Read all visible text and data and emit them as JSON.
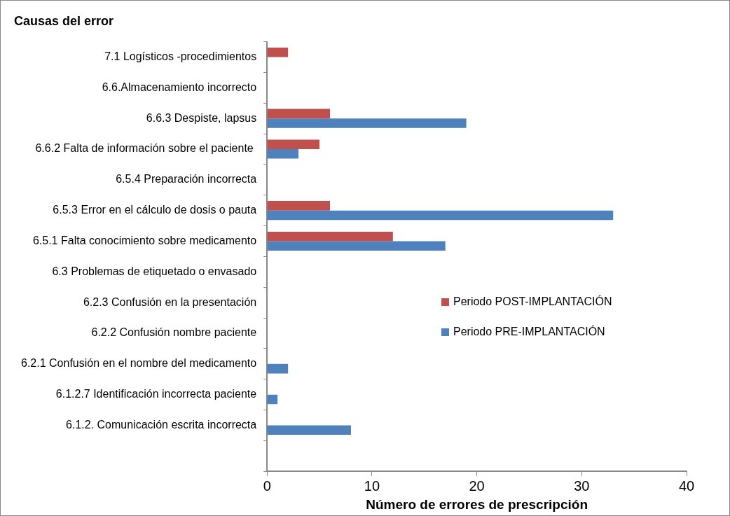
{
  "chart_data": {
    "type": "bar",
    "orientation": "horizontal",
    "title": "Causas del error",
    "xlabel": "Número de errores de prescripción",
    "categories": [
      "7.1 Logísticos -procedimientos",
      "6.6.Almacenamiento incorrecto",
      "6.6.3 Despiste, lapsus",
      "6.6.2 Falta de información sobre el paciente ",
      "6.5.4 Preparación incorrecta",
      "6.5.3 Error en el cálculo de dosis o pauta",
      "6.5.1 Falta conocimiento sobre medicamento",
      "6.3 Problemas de etiquetado o envasado",
      "6.2.3 Confusión en la presentación",
      "6.2.2 Confusión nombre paciente",
      "6.2.1 Confusión en el nombre del medicamento",
      "6.1.2.7 Identificación incorrecta paciente",
      "6.1.2. Comunicación escrita incorrecta",
      null
    ],
    "series": [
      {
        "name": "Periodo POST-IMPLANTACIÓN",
        "color": "#c0504d",
        "values": [
          2,
          0,
          6,
          5,
          0,
          6,
          12,
          0,
          0,
          0,
          0,
          0,
          0,
          0
        ]
      },
      {
        "name": "Periodo PRE-IMPLANTACIÓN",
        "color": "#4f81bd",
        "values": [
          0,
          0,
          19,
          3,
          0,
          33,
          17,
          0,
          0,
          0,
          2,
          1,
          8,
          0
        ]
      }
    ],
    "xlim": [
      0,
      40
    ],
    "xticks": [
      0,
      10,
      20,
      30,
      40
    ],
    "grid": false,
    "legend": "right"
  }
}
